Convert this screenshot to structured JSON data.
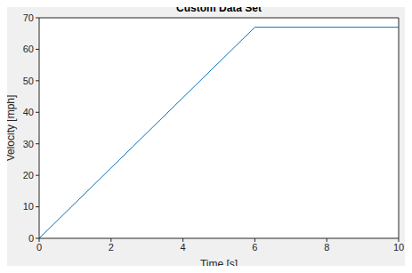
{
  "chart_data": {
    "type": "line",
    "title": "Custom Data Set",
    "x_label": "Time [s]",
    "y_label": "Velocity [mph]",
    "x": [
      0,
      6,
      10
    ],
    "series": [
      {
        "name": "Velocity",
        "color": "#0072bd",
        "values": [
          0,
          67,
          67
        ]
      }
    ],
    "xlim": [
      0,
      10
    ],
    "xticks": [
      0,
      2,
      4,
      6,
      8,
      10
    ],
    "ylim": [
      0,
      70
    ],
    "yticks": [
      0,
      10,
      20,
      30,
      40,
      50,
      60,
      70
    ],
    "grid": false
  }
}
